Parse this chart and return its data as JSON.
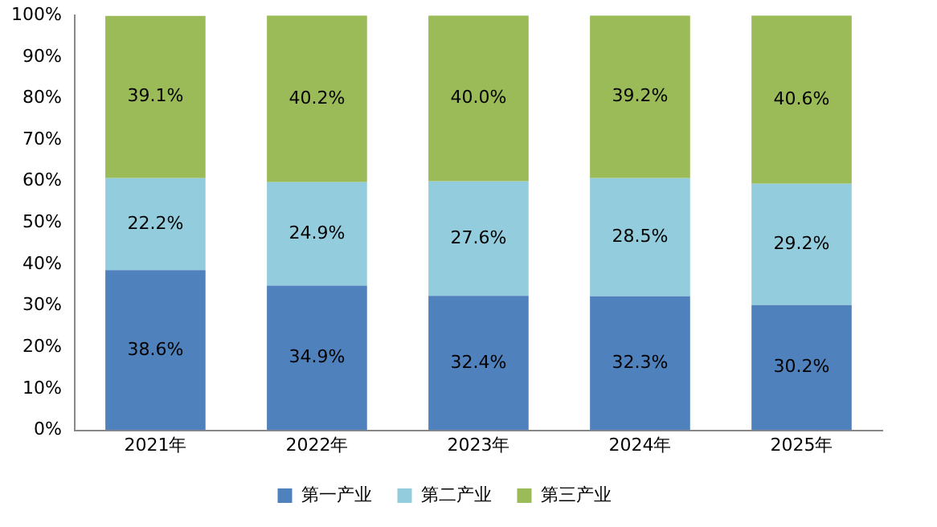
{
  "chart_data": {
    "type": "bar",
    "stacked": true,
    "categories": [
      "2021年",
      "2022年",
      "2023年",
      "2024年",
      "2025年"
    ],
    "series": [
      {
        "name": "第一产业",
        "color": "#4f81bd",
        "values": [
          38.6,
          34.9,
          32.4,
          32.3,
          30.2
        ]
      },
      {
        "name": "第二产业",
        "color": "#93cddd",
        "values": [
          22.2,
          24.9,
          27.6,
          28.5,
          29.2
        ]
      },
      {
        "name": "第三产业",
        "color": "#9bbb59",
        "values": [
          39.1,
          40.2,
          40.0,
          39.2,
          40.6
        ]
      }
    ],
    "value_labels": [
      [
        "38.6%",
        "34.9%",
        "32.4%",
        "32.3%",
        "30.2%"
      ],
      [
        "22.2%",
        "24.9%",
        "27.6%",
        "28.5%",
        "29.2%"
      ],
      [
        "39.1%",
        "40.2%",
        "40.0%",
        "39.2%",
        "40.6%"
      ]
    ],
    "ylim": [
      0,
      100
    ],
    "yticks": [
      {
        "value": 0,
        "label": "0%"
      },
      {
        "value": 10,
        "label": "10%"
      },
      {
        "value": 20,
        "label": "20%"
      },
      {
        "value": 30,
        "label": "30%"
      },
      {
        "value": 40,
        "label": "40%"
      },
      {
        "value": 50,
        "label": "50%"
      },
      {
        "value": 60,
        "label": "60%"
      },
      {
        "value": 70,
        "label": "70%"
      },
      {
        "value": 80,
        "label": "80%"
      },
      {
        "value": 90,
        "label": "90%"
      },
      {
        "value": 100,
        "label": "100%"
      }
    ],
    "grid": false,
    "legend": "bottom"
  }
}
